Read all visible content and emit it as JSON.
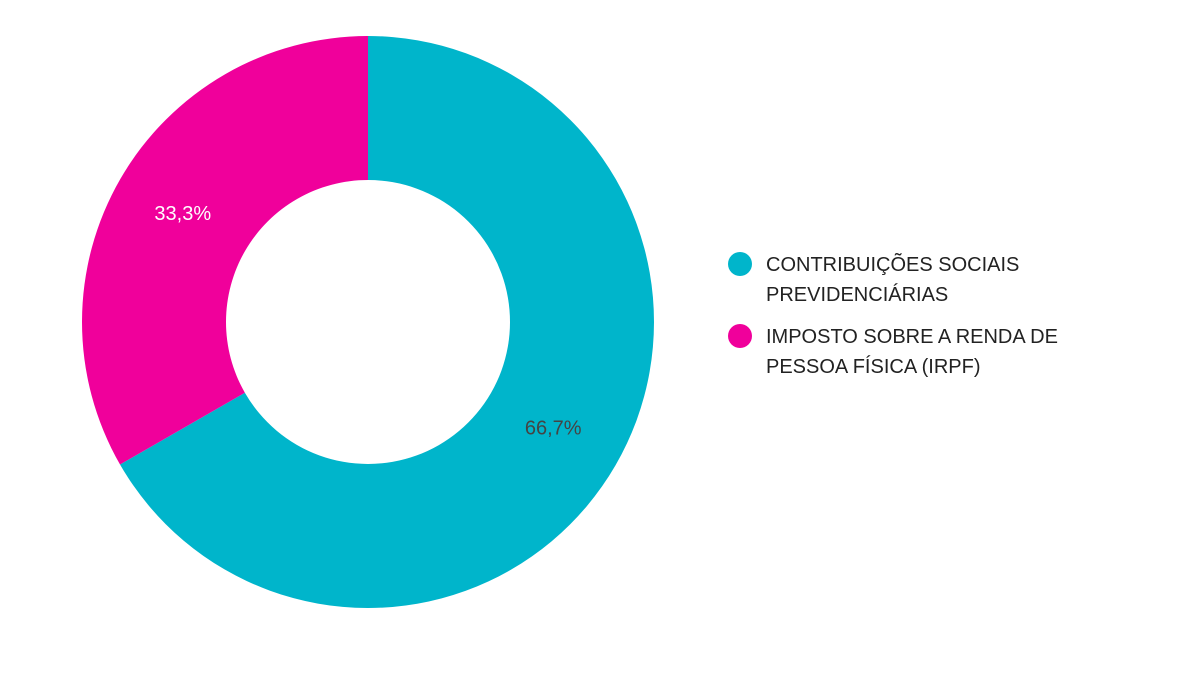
{
  "chart_data": {
    "type": "donut",
    "categories": [
      "CONTRIBUIÇÕES SOCIAIS PREVIDENCIÁRIAS",
      "IMPOSTO SOBRE A RENDA DE PESSOA FÍSICA (IRPF)"
    ],
    "values": [
      66.7,
      33.3
    ],
    "value_labels": [
      "66,7%",
      "33,3%"
    ],
    "colors": [
      "#00b5cb",
      "#f0009b"
    ],
    "label_colors": [
      "#444444",
      "#ffffff"
    ],
    "legend": "right"
  }
}
